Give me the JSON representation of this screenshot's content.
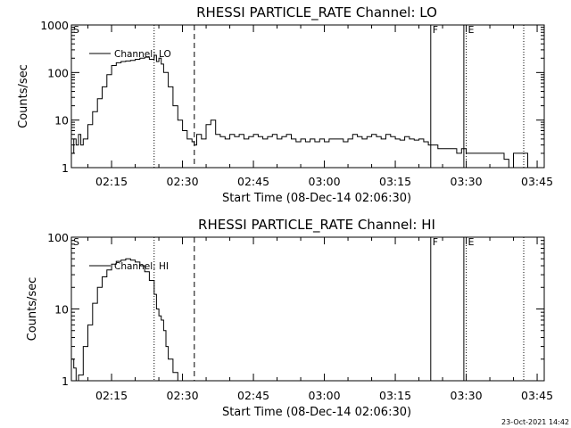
{
  "chart_data": [
    {
      "type": "line",
      "title": "RHESSI PARTICLE_RATE Channel: LO",
      "xlabel": "Start Time (08-Dec-14 02:06:30)",
      "ylabel": "Counts/sec",
      "x_tick_labels": [
        "02:15",
        "02:30",
        "02:45",
        "03:00",
        "03:15",
        "03:30",
        "03:45"
      ],
      "x_tick_minutes": [
        15,
        30,
        45,
        60,
        75,
        90,
        105
      ],
      "y_tick_labels": [
        "1",
        "10",
        "100",
        "1000"
      ],
      "y_scale": "log",
      "xlim_minutes": [
        6.5,
        106.5
      ],
      "ylim": [
        1,
        1000
      ],
      "series": [
        {
          "name": "Channel: LO",
          "x_minutes": [
            6.5,
            7,
            7.5,
            8,
            8.5,
            9,
            10,
            11,
            12,
            13,
            14,
            15,
            16,
            17,
            18,
            19,
            20,
            21,
            22,
            23,
            24,
            24.5,
            25,
            25.5,
            26,
            27,
            28,
            29,
            30,
            31,
            32,
            32.5,
            33,
            34,
            35,
            36,
            37,
            38,
            39,
            40,
            41,
            42,
            43,
            44,
            45,
            46,
            47,
            48,
            49,
            50,
            51,
            52,
            53,
            54,
            55,
            56,
            57,
            58,
            59,
            60,
            61,
            62,
            63,
            64,
            65,
            66,
            67,
            68,
            69,
            70,
            71,
            72,
            73,
            74,
            75,
            76,
            77,
            78,
            79,
            80,
            81,
            82,
            83,
            84,
            85,
            86,
            87,
            88,
            89,
            90,
            91,
            92,
            93,
            94,
            95,
            96,
            97,
            98,
            99,
            100,
            101,
            102,
            103,
            104
          ],
          "y": [
            2,
            4,
            3,
            5,
            3,
            4,
            8,
            15,
            28,
            50,
            90,
            140,
            160,
            170,
            175,
            180,
            190,
            200,
            210,
            190,
            230,
            170,
            200,
            150,
            100,
            50,
            20,
            10,
            6,
            4,
            3.5,
            3.0,
            5,
            4,
            8,
            10,
            5,
            4.5,
            4,
            5,
            4.5,
            5,
            4,
            4.5,
            5,
            4.5,
            4,
            4.5,
            5,
            4,
            4.5,
            5,
            4,
            3.5,
            4,
            3.5,
            4,
            3.5,
            4,
            3.5,
            4,
            4,
            4,
            3.5,
            4,
            5,
            4.5,
            4,
            4.5,
            5,
            4.5,
            4,
            5,
            4.5,
            4,
            3.8,
            4.5,
            4,
            3.8,
            4,
            3.5,
            3,
            3,
            2.5,
            2.5,
            2.5,
            2.5,
            2,
            2.5,
            2,
            2,
            2,
            2,
            2,
            2,
            2,
            2,
            1.5,
            1,
            2,
            2,
            2,
            1,
            1
          ]
        }
      ],
      "markers": [
        {
          "label": "S",
          "minute": 6.5,
          "style": "solid"
        },
        {
          "label": "",
          "minute": 24,
          "style": "dotted"
        },
        {
          "label": "",
          "minute": 32.5,
          "style": "dashed"
        },
        {
          "label": "F",
          "minute": 82.5,
          "style": "solid"
        },
        {
          "label": "",
          "minute": 89.5,
          "style": "solid"
        },
        {
          "label": "E",
          "minute": 90,
          "style": "dotted"
        },
        {
          "label": "",
          "minute": 107,
          "style": "dotted"
        }
      ]
    },
    {
      "type": "line",
      "title": "RHESSI PARTICLE_RATE Channel: HI",
      "xlabel": "Start Time (08-Dec-14 02:06:30)",
      "ylabel": "Counts/sec",
      "x_tick_labels": [
        "02:15",
        "02:30",
        "02:45",
        "03:00",
        "03:15",
        "03:30",
        "03:45"
      ],
      "x_tick_minutes": [
        15,
        30,
        45,
        60,
        75,
        90,
        105
      ],
      "y_tick_labels": [
        "1",
        "10",
        "100"
      ],
      "y_scale": "log",
      "xlim_minutes": [
        6.5,
        106.5
      ],
      "ylim": [
        1,
        100
      ],
      "series": [
        {
          "name": "Channel: HI",
          "x_minutes": [
            6.5,
            7,
            7.5,
            8,
            9,
            10,
            11,
            12,
            13,
            14,
            15,
            16,
            17,
            18,
            19,
            20,
            21,
            22,
            23,
            24,
            24.5,
            25,
            25.5,
            26,
            26.5,
            27,
            28,
            29
          ],
          "y": [
            2,
            1.5,
            1,
            1.2,
            3,
            6,
            12,
            20,
            28,
            35,
            42,
            46,
            48,
            50,
            48,
            45,
            40,
            33,
            25,
            16,
            10,
            8,
            7,
            5,
            3,
            2,
            1.3,
            1
          ]
        }
      ],
      "markers": [
        {
          "label": "S",
          "minute": 6.5,
          "style": "solid"
        },
        {
          "label": "",
          "minute": 24,
          "style": "dotted"
        },
        {
          "label": "",
          "minute": 32.5,
          "style": "dashed"
        },
        {
          "label": "F",
          "minute": 82.5,
          "style": "solid"
        },
        {
          "label": "",
          "minute": 89.5,
          "style": "solid"
        },
        {
          "label": "E",
          "minute": 90,
          "style": "dotted"
        },
        {
          "label": "",
          "minute": 107,
          "style": "dotted"
        }
      ]
    }
  ],
  "footer": {
    "stamp": "23-Oct-2021 14:42"
  }
}
